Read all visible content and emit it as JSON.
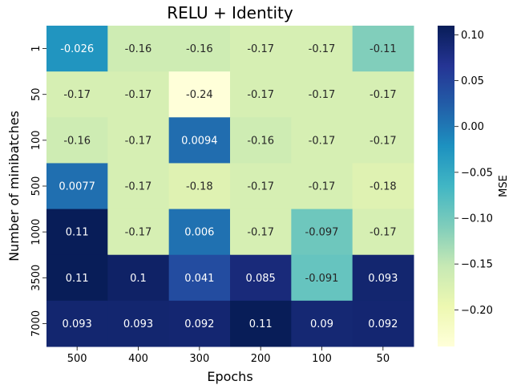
{
  "chart_data": {
    "type": "heatmap",
    "title": "RELU + Identity",
    "xlabel": "Epochs",
    "ylabel": "Number of minibatches",
    "x_categories": [
      "500",
      "400",
      "300",
      "200",
      "100",
      "50"
    ],
    "y_categories": [
      "1",
      "50",
      "100",
      "500",
      "1000",
      "3500",
      "7000"
    ],
    "values": [
      [
        -0.026,
        -0.16,
        -0.16,
        -0.17,
        -0.17,
        -0.11
      ],
      [
        -0.17,
        -0.17,
        -0.24,
        -0.17,
        -0.17,
        -0.17
      ],
      [
        -0.16,
        -0.17,
        0.0094,
        -0.16,
        -0.17,
        -0.17
      ],
      [
        0.0077,
        -0.17,
        -0.18,
        -0.17,
        -0.17,
        -0.18
      ],
      [
        0.11,
        -0.17,
        0.006,
        -0.17,
        -0.097,
        -0.17
      ],
      [
        0.11,
        0.1,
        0.041,
        0.085,
        -0.091,
        0.093
      ],
      [
        0.093,
        0.093,
        0.092,
        0.11,
        0.09,
        0.092
      ]
    ],
    "value_labels": [
      [
        "-0.026",
        "-0.16",
        "-0.16",
        "-0.17",
        "-0.17",
        "-0.11"
      ],
      [
        "-0.17",
        "-0.17",
        "-0.24",
        "-0.17",
        "-0.17",
        "-0.17"
      ],
      [
        "-0.16",
        "-0.17",
        "0.0094",
        "-0.16",
        "-0.17",
        "-0.17"
      ],
      [
        "0.0077",
        "-0.17",
        "-0.18",
        "-0.17",
        "-0.17",
        "-0.18"
      ],
      [
        "0.11",
        "-0.17",
        "0.006",
        "-0.17",
        "-0.097",
        "-0.17"
      ],
      [
        "0.11",
        "0.1",
        "0.041",
        "0.085",
        "-0.091",
        "0.093"
      ],
      [
        "0.093",
        "0.093",
        "0.092",
        "0.11",
        "0.09",
        "0.092"
      ]
    ],
    "colorbar": {
      "label": "MSE",
      "range": [
        -0.24,
        0.11
      ],
      "ticks": [
        0.1,
        0.05,
        0.0,
        -0.05,
        -0.1,
        -0.15,
        -0.2
      ],
      "tick_labels": [
        "0.10",
        "0.05",
        "0.00",
        "−0.05",
        "−0.10",
        "−0.15",
        "−0.20"
      ]
    },
    "colormap": "YlGnBu",
    "colormap_stops": [
      "#ffffd9",
      "#edf8b1",
      "#c7e9b4",
      "#7fcdbb",
      "#41b6c4",
      "#1d91c0",
      "#225ea8",
      "#253494",
      "#081d58"
    ]
  }
}
